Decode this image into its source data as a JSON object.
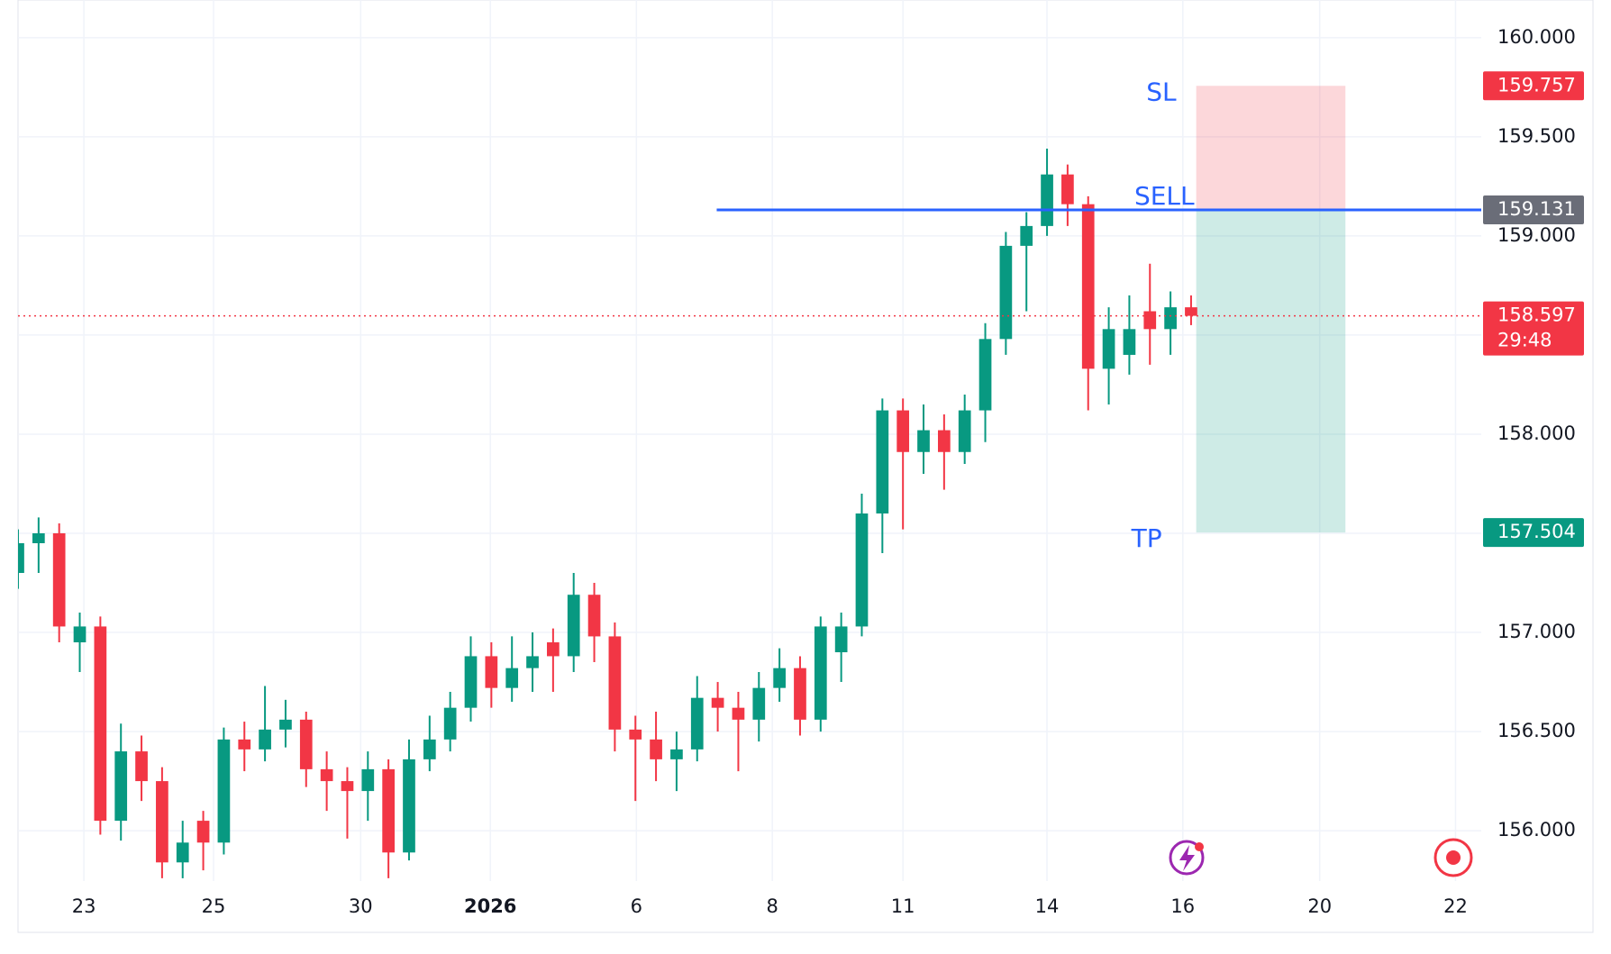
{
  "chart_data": {
    "type": "candlestick",
    "up_color": "#089981",
    "down_color": "#f23645",
    "open": [
      157.3,
      157.45,
      157.5,
      156.95,
      157.03,
      156.05,
      156.4,
      156.25,
      155.84,
      156.05,
      155.94,
      156.46,
      156.41,
      156.51,
      156.56,
      156.31,
      156.25,
      156.2,
      156.31,
      155.89,
      156.36,
      156.46,
      156.62,
      156.88,
      156.72,
      156.82,
      156.95,
      156.88,
      157.19,
      156.98,
      156.51,
      156.46,
      156.36,
      156.41,
      156.67,
      156.62,
      156.56,
      156.72,
      156.82,
      156.56,
      156.9,
      157.03,
      157.6,
      158.12,
      157.91,
      158.02,
      157.91,
      158.12,
      158.48,
      158.95,
      159.05,
      159.31,
      159.16,
      158.33,
      158.4,
      158.62,
      158.53,
      158.64
    ],
    "high": [
      157.52,
      157.58,
      157.55,
      157.1,
      157.08,
      156.54,
      156.48,
      156.32,
      156.05,
      156.1,
      156.52,
      156.55,
      156.73,
      156.66,
      156.6,
      156.4,
      156.32,
      156.4,
      156.36,
      156.46,
      156.58,
      156.7,
      156.98,
      156.95,
      156.98,
      157.0,
      157.02,
      157.3,
      157.25,
      157.05,
      156.58,
      156.6,
      156.5,
      156.78,
      156.75,
      156.7,
      156.8,
      156.92,
      156.88,
      157.08,
      157.1,
      157.7,
      158.18,
      158.18,
      158.15,
      158.1,
      158.2,
      158.56,
      159.02,
      159.12,
      159.44,
      159.36,
      159.2,
      158.64,
      158.7,
      158.86,
      158.72,
      158.7
    ],
    "low": [
      157.22,
      157.3,
      156.95,
      156.8,
      155.98,
      155.95,
      156.15,
      155.76,
      155.76,
      155.8,
      155.88,
      156.3,
      156.35,
      156.42,
      156.22,
      156.1,
      155.96,
      156.05,
      155.76,
      155.85,
      156.3,
      156.4,
      156.55,
      156.62,
      156.65,
      156.7,
      156.7,
      156.8,
      156.85,
      156.4,
      156.15,
      156.25,
      156.2,
      156.35,
      156.5,
      156.3,
      156.45,
      156.65,
      156.48,
      156.5,
      156.75,
      156.98,
      157.4,
      157.52,
      157.8,
      157.72,
      157.85,
      157.96,
      158.4,
      158.62,
      159.0,
      159.05,
      158.12,
      158.15,
      158.3,
      158.35,
      158.4,
      158.55
    ],
    "close": [
      157.45,
      157.5,
      157.03,
      157.03,
      156.05,
      156.4,
      156.25,
      155.84,
      155.94,
      155.94,
      156.46,
      156.41,
      156.51,
      156.56,
      156.31,
      156.25,
      156.2,
      156.31,
      155.89,
      156.36,
      156.46,
      156.62,
      156.88,
      156.72,
      156.82,
      156.88,
      156.88,
      157.19,
      156.98,
      156.51,
      156.46,
      156.36,
      156.41,
      156.67,
      156.62,
      156.56,
      156.72,
      156.82,
      156.56,
      157.03,
      157.03,
      157.6,
      158.12,
      157.91,
      158.02,
      157.91,
      158.12,
      158.48,
      158.95,
      159.05,
      159.31,
      159.16,
      158.33,
      158.53,
      158.53,
      158.53,
      158.64,
      158.597
    ],
    "xlim": [
      0,
      71.1
    ],
    "xticks": [
      {
        "value": 3.2,
        "label": "23"
      },
      {
        "value": 9.5,
        "label": "25"
      },
      {
        "value": 16.65,
        "label": "30"
      },
      {
        "value": 22.95,
        "label": "2026",
        "bold": true
      },
      {
        "value": 30.05,
        "label": "6"
      },
      {
        "value": 36.65,
        "label": "8"
      },
      {
        "value": 43,
        "label": "11"
      },
      {
        "value": 50,
        "label": "14"
      },
      {
        "value": 56.6,
        "label": "16"
      },
      {
        "value": 63.25,
        "label": "20"
      },
      {
        "value": 69.85,
        "label": "22"
      }
    ],
    "ylim": [
      155.746,
      160.19
    ],
    "yticks": [
      {
        "value": 156,
        "label": "156.000"
      },
      {
        "value": 156.5,
        "label": "156.500"
      },
      {
        "value": 157,
        "label": "157.000"
      },
      {
        "value": 157.5,
        "label": "157.500"
      },
      {
        "value": 158,
        "label": "158.000"
      },
      {
        "value": 158.5,
        "label": "158.500"
      },
      {
        "value": 159,
        "label": "159.000"
      },
      {
        "value": 159.5,
        "label": "159.500"
      },
      {
        "value": 160,
        "label": "160.000"
      }
    ],
    "grid": true,
    "last_price": 158.597,
    "countdown": "29:48",
    "position": {
      "entry": 159.131,
      "stop": 159.757,
      "target": 157.504,
      "x_range": [
        57.25,
        64.5
      ],
      "line_start": 33.95,
      "entry_label": "SELL",
      "stop_label": "SL",
      "target_label": "TP"
    }
  }
}
